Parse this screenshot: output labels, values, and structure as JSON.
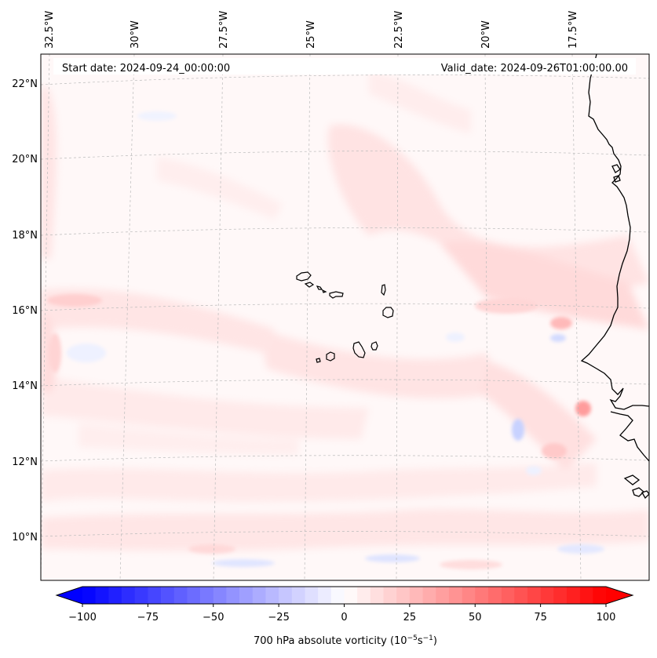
{
  "header": {
    "start_date": "Start date: 2024-09-24_00:00:00",
    "valid_date": "Valid_date: 2024-09-26T01:00:00.00"
  },
  "map": {
    "longitude_labels": [
      "32.5°W",
      "30°W",
      "27.5°W",
      "25°W",
      "22.5°W",
      "20°W",
      "17.5°W"
    ],
    "latitude_labels": [
      "22°N",
      "20°N",
      "18°N",
      "16°N",
      "14°N",
      "12°N",
      "10°N"
    ],
    "features": [
      "cape-verde-islands",
      "west-africa-coastline"
    ],
    "shading_colors": {
      "light_red": "#ffe1e1",
      "mid_red": "#ffbcbc",
      "light_blue": "#e6ebff",
      "mid_blue": "#c6d0ff"
    }
  },
  "colorbar": {
    "tick_labels": [
      "−100",
      "−75",
      "−50",
      "−25",
      "0",
      "25",
      "50",
      "75",
      "100"
    ],
    "label": "700 hPa absolute vorticity (10",
    "label_exp1": "−5",
    "label_mid": "s",
    "label_exp2": "−1",
    "label_end": ")",
    "min_color": "#0000ff",
    "mid_color": "#ffffff",
    "max_color": "#ff0000",
    "range": [
      -100,
      100
    ]
  }
}
